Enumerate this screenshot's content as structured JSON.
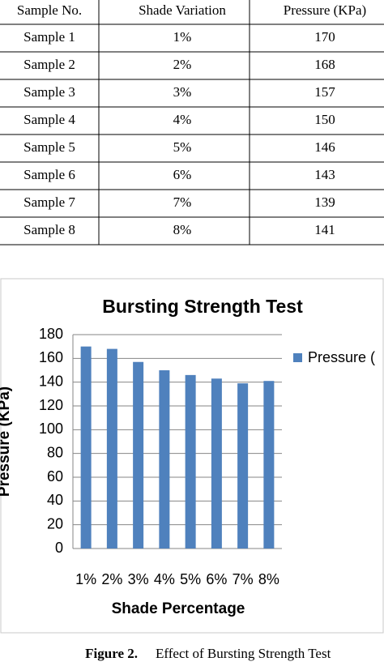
{
  "table": {
    "header": [
      "Sample No.",
      "Shade Variation",
      "Pressure (KPa)"
    ],
    "rows": [
      [
        "Sample 1",
        "1%",
        "170"
      ],
      [
        "Sample 2",
        "2%",
        "168"
      ],
      [
        "Sample 3",
        "3%",
        "157"
      ],
      [
        "Sample 4",
        "4%",
        "150"
      ],
      [
        "Sample 5",
        "5%",
        "146"
      ],
      [
        "Sample 6",
        "6%",
        "143"
      ],
      [
        "Sample 7",
        "7%",
        "139"
      ],
      [
        "Sample 8",
        "8%",
        "141"
      ]
    ]
  },
  "chart_data": {
    "type": "bar",
    "title": "Bursting Strength Test",
    "x_label": "Shade Percentage",
    "y_label": "Pressure (KPa)",
    "categories": [
      "1%",
      "2%",
      "3%",
      "4%",
      "5%",
      "6%",
      "7%",
      "8%"
    ],
    "series": [
      {
        "name": "Pressure (",
        "color": "#4f81bd",
        "values": [
          170,
          168,
          157,
          150,
          146,
          143,
          139,
          141
        ]
      }
    ],
    "ylim": [
      0,
      180
    ],
    "yticks": [
      0,
      20,
      40,
      60,
      80,
      100,
      120,
      140,
      160,
      180
    ],
    "grid": true,
    "legend": "right"
  },
  "caption": {
    "label": "Figure 2.",
    "text": "Effect of Bursting Strength Test"
  }
}
